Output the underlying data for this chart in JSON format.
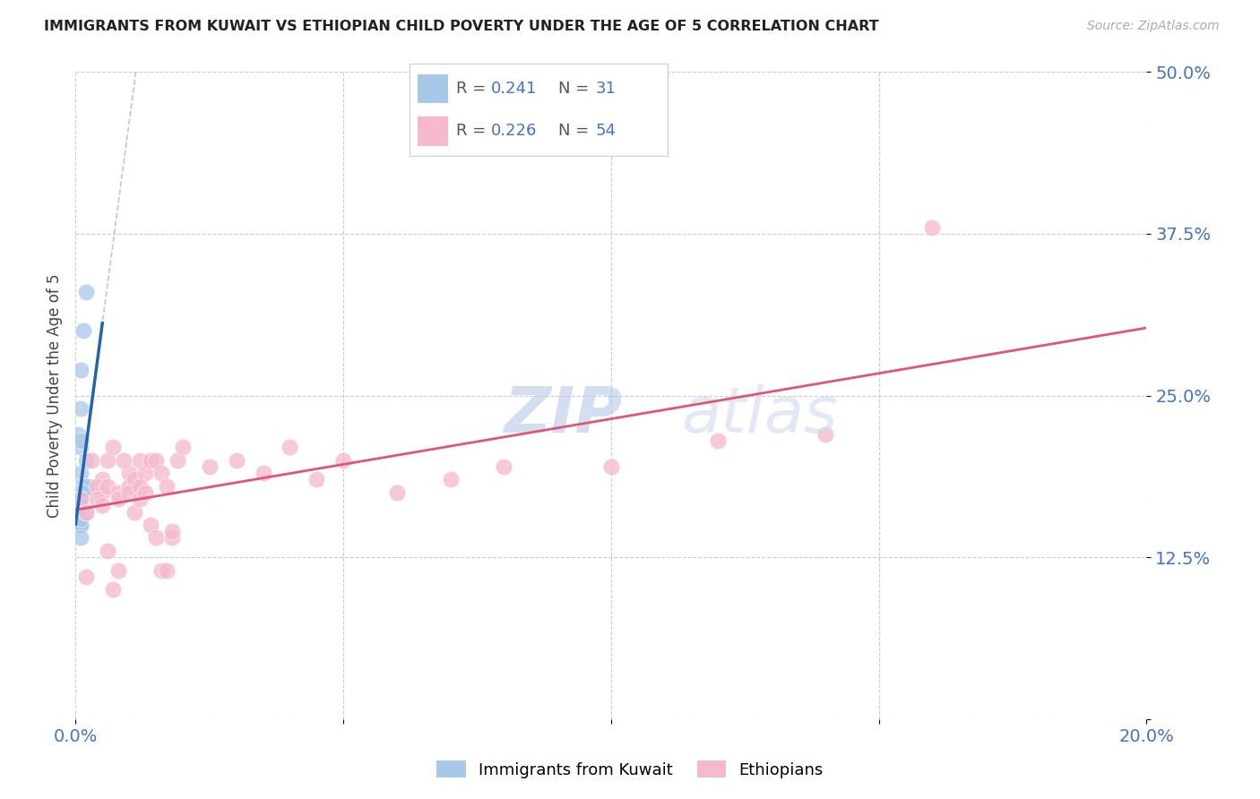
{
  "title": "IMMIGRANTS FROM KUWAIT VS ETHIOPIAN CHILD POVERTY UNDER THE AGE OF 5 CORRELATION CHART",
  "source": "Source: ZipAtlas.com",
  "ylabel": "Child Poverty Under the Age of 5",
  "xlim": [
    0.0,
    0.2
  ],
  "ylim": [
    0.0,
    0.5
  ],
  "yticks": [
    0.0,
    0.125,
    0.25,
    0.375,
    0.5
  ],
  "ytick_labels": [
    "",
    "12.5%",
    "25.0%",
    "37.5%",
    "50.0%"
  ],
  "xticks": [
    0.0,
    0.05,
    0.1,
    0.15,
    0.2
  ],
  "xtick_labels": [
    "0.0%",
    "",
    "",
    "",
    "20.0%"
  ],
  "blue_color": "#a8c8e8",
  "pink_color": "#f5b8cc",
  "blue_line_color": "#2166ac",
  "pink_line_color": "#e05575",
  "axis_color": "#4472C4",
  "watermark_color": "#dce6f5",
  "background_color": "#ffffff",
  "kuwait_x": [
    0.001,
    0.0015,
    0.001,
    0.001,
    0.0005,
    0.001,
    0.001,
    0.001,
    0.001,
    0.0005,
    0.002,
    0.0025,
    0.002,
    0.0015,
    0.002,
    0.001,
    0.001,
    0.001,
    0.0015,
    0.001,
    0.001,
    0.001,
    0.001,
    0.001,
    0.001,
    0.001,
    0.001,
    0.001,
    0.001,
    0.001,
    0.001
  ],
  "kuwait_y": [
    0.175,
    0.3,
    0.27,
    0.24,
    0.22,
    0.21,
    0.215,
    0.19,
    0.18,
    0.175,
    0.33,
    0.18,
    0.2,
    0.18,
    0.18,
    0.175,
    0.16,
    0.17,
    0.175,
    0.17,
    0.16,
    0.155,
    0.165,
    0.155,
    0.155,
    0.15,
    0.15,
    0.155,
    0.15,
    0.14,
    0.155
  ],
  "ethiopia_x": [
    0.001,
    0.002,
    0.003,
    0.002,
    0.005,
    0.006,
    0.005,
    0.004,
    0.004,
    0.005,
    0.006,
    0.007,
    0.008,
    0.007,
    0.006,
    0.008,
    0.01,
    0.009,
    0.008,
    0.01,
    0.011,
    0.012,
    0.011,
    0.01,
    0.013,
    0.012,
    0.012,
    0.014,
    0.013,
    0.015,
    0.014,
    0.016,
    0.015,
    0.017,
    0.016,
    0.018,
    0.017,
    0.019,
    0.018,
    0.02,
    0.025,
    0.03,
    0.035,
    0.04,
    0.045,
    0.05,
    0.06,
    0.07,
    0.08,
    0.1,
    0.12,
    0.14,
    0.16,
    0.002
  ],
  "ethiopia_y": [
    0.17,
    0.16,
    0.2,
    0.16,
    0.185,
    0.2,
    0.175,
    0.18,
    0.17,
    0.165,
    0.13,
    0.21,
    0.115,
    0.1,
    0.18,
    0.175,
    0.19,
    0.2,
    0.17,
    0.18,
    0.16,
    0.2,
    0.185,
    0.175,
    0.19,
    0.18,
    0.17,
    0.2,
    0.175,
    0.2,
    0.15,
    0.19,
    0.14,
    0.18,
    0.115,
    0.14,
    0.115,
    0.2,
    0.145,
    0.21,
    0.195,
    0.2,
    0.19,
    0.21,
    0.185,
    0.2,
    0.175,
    0.185,
    0.195,
    0.195,
    0.215,
    0.22,
    0.38,
    0.11
  ],
  "r_kuwait": "0.241",
  "n_kuwait": "31",
  "r_ethiopia": "0.226",
  "n_ethiopia": "54"
}
